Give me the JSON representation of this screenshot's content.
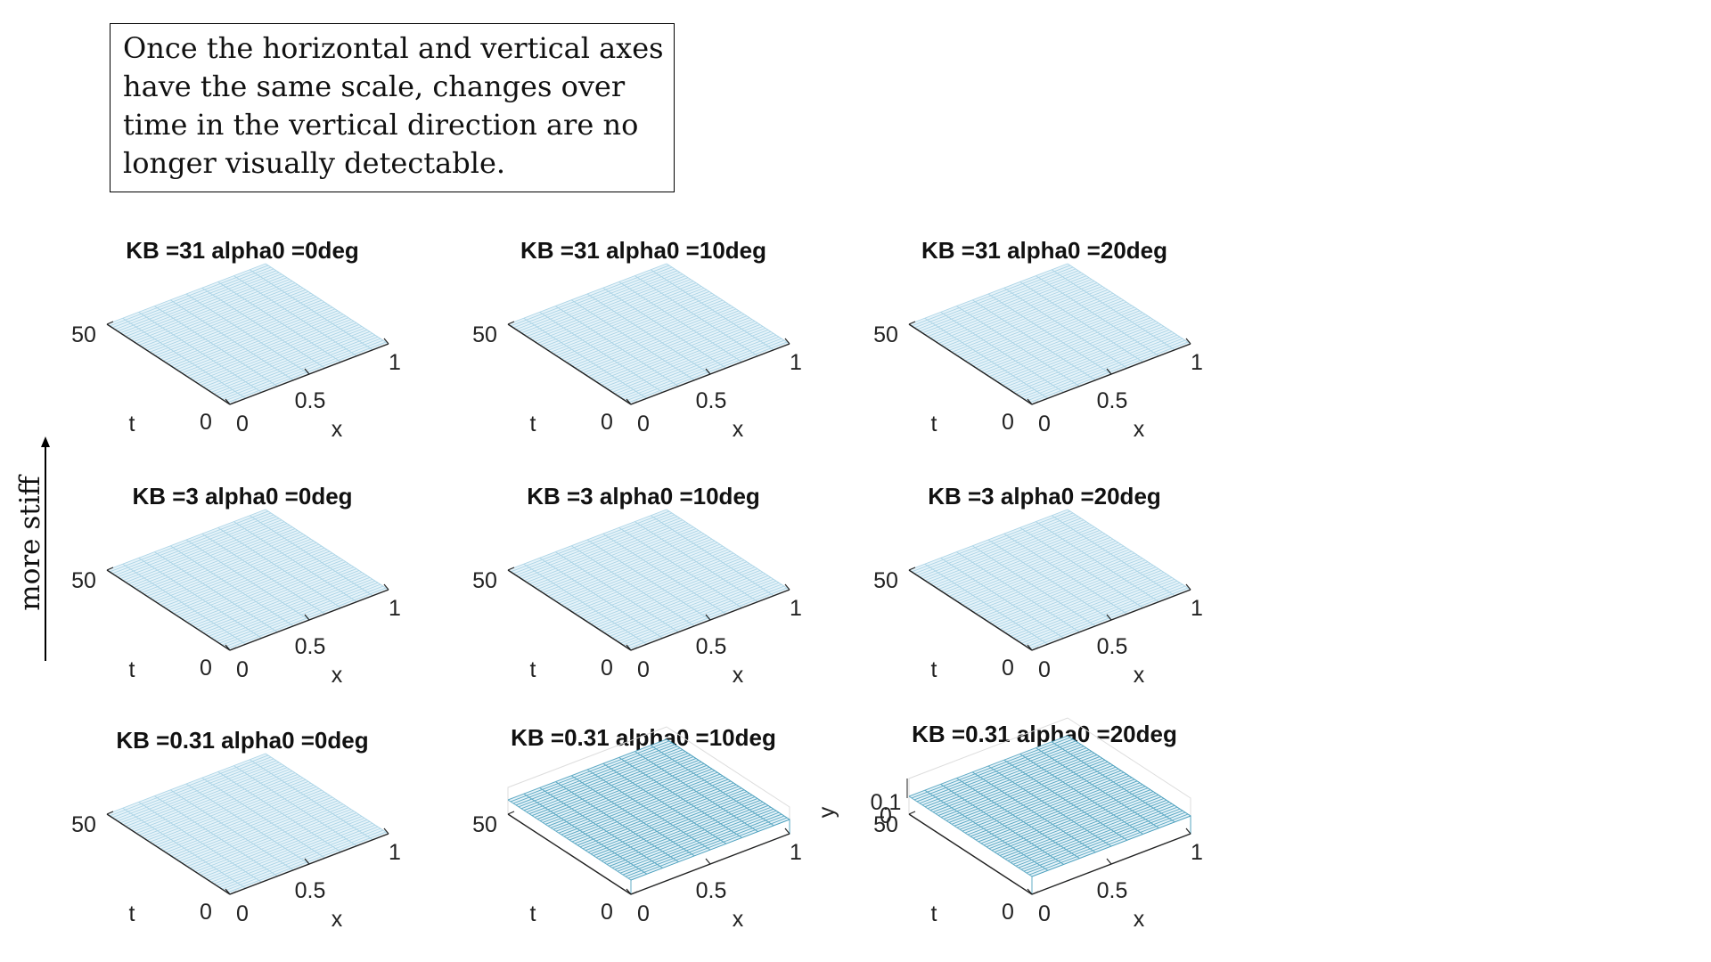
{
  "annotation": {
    "lines": [
      "Once the horizontal and vertical axes",
      "have the same scale, changes over",
      "time in the vertical direction are no",
      "longer visually detectable."
    ]
  },
  "side_label": "more stiff",
  "chart_data": [
    {
      "type": "surface",
      "title": "KB =31 alpha0 =0deg",
      "KB": 31,
      "alpha0_deg": 0,
      "xlabel": "x",
      "ylabel": "t",
      "zlabel": "",
      "x_ticks": [
        "0",
        "0.5",
        "1"
      ],
      "t_ticks": [
        "0",
        "50"
      ],
      "z_ticks": [],
      "xlim": [
        0,
        1
      ],
      "tlim": [
        0,
        50
      ],
      "surface": "flat"
    },
    {
      "type": "surface",
      "title": "KB =31 alpha0 =10deg",
      "KB": 31,
      "alpha0_deg": 10,
      "xlabel": "x",
      "ylabel": "t",
      "zlabel": "",
      "x_ticks": [
        "0",
        "0.5",
        "1"
      ],
      "t_ticks": [
        "0",
        "50"
      ],
      "z_ticks": [],
      "xlim": [
        0,
        1
      ],
      "tlim": [
        0,
        50
      ],
      "surface": "flat"
    },
    {
      "type": "surface",
      "title": "KB =31 alpha0 =20deg",
      "KB": 31,
      "alpha0_deg": 20,
      "xlabel": "x",
      "ylabel": "t",
      "zlabel": "",
      "x_ticks": [
        "0",
        "0.5",
        "1"
      ],
      "t_ticks": [
        "0",
        "50"
      ],
      "z_ticks": [],
      "xlim": [
        0,
        1
      ],
      "tlim": [
        0,
        50
      ],
      "surface": "flat"
    },
    {
      "type": "surface",
      "title": "KB =3 alpha0 =0deg",
      "KB": 3,
      "alpha0_deg": 0,
      "xlabel": "x",
      "ylabel": "t",
      "zlabel": "",
      "x_ticks": [
        "0",
        "0.5",
        "1"
      ],
      "t_ticks": [
        "0",
        "50"
      ],
      "z_ticks": [],
      "xlim": [
        0,
        1
      ],
      "tlim": [
        0,
        50
      ],
      "surface": "flat"
    },
    {
      "type": "surface",
      "title": "KB =3 alpha0 =10deg",
      "KB": 3,
      "alpha0_deg": 10,
      "xlabel": "x",
      "ylabel": "t",
      "zlabel": "",
      "x_ticks": [
        "0",
        "0.5",
        "1"
      ],
      "t_ticks": [
        "0",
        "50"
      ],
      "z_ticks": [],
      "xlim": [
        0,
        1
      ],
      "tlim": [
        0,
        50
      ],
      "surface": "flat"
    },
    {
      "type": "surface",
      "title": "KB =3 alpha0 =20deg",
      "KB": 3,
      "alpha0_deg": 20,
      "xlabel": "x",
      "ylabel": "t",
      "zlabel": "",
      "x_ticks": [
        "0",
        "0.5",
        "1"
      ],
      "t_ticks": [
        "0",
        "50"
      ],
      "z_ticks": [],
      "xlim": [
        0,
        1
      ],
      "tlim": [
        0,
        50
      ],
      "surface": "flat"
    },
    {
      "type": "surface",
      "title": "KB =0.31 alpha0 =0deg",
      "KB": 0.31,
      "alpha0_deg": 0,
      "xlabel": "x",
      "ylabel": "t",
      "zlabel": "",
      "x_ticks": [
        "0",
        "0.5",
        "1"
      ],
      "t_ticks": [
        "0",
        "50"
      ],
      "z_ticks": [],
      "xlim": [
        0,
        1
      ],
      "tlim": [
        0,
        50
      ],
      "surface": "flat"
    },
    {
      "type": "surface",
      "title": "KB =0.31 alpha0 =10deg",
      "KB": 0.31,
      "alpha0_deg": 10,
      "xlabel": "x",
      "ylabel": "t",
      "zlabel": "",
      "x_ticks": [
        "0",
        "0.5",
        "1"
      ],
      "t_ticks": [
        "0",
        "50"
      ],
      "z_ticks": [],
      "xlim": [
        0,
        1
      ],
      "tlim": [
        0,
        50
      ],
      "surface": "raised"
    },
    {
      "type": "surface",
      "title": "KB =0.31 alpha0 =20deg",
      "KB": 0.31,
      "alpha0_deg": 20,
      "xlabel": "x",
      "ylabel": "t",
      "zlabel": "y",
      "x_ticks": [
        "0",
        "0.5",
        "1"
      ],
      "t_ticks": [
        "0",
        "50"
      ],
      "z_ticks": [
        "0",
        "0.1"
      ],
      "xlim": [
        0,
        1
      ],
      "tlim": [
        0,
        50
      ],
      "surface": "raised"
    }
  ],
  "colors": {
    "mesh_light": "#a9d3e6",
    "mesh_dark": "#3d98b8",
    "face": "#e6f3f9",
    "axis": "#222222",
    "box": "#dddddd"
  }
}
